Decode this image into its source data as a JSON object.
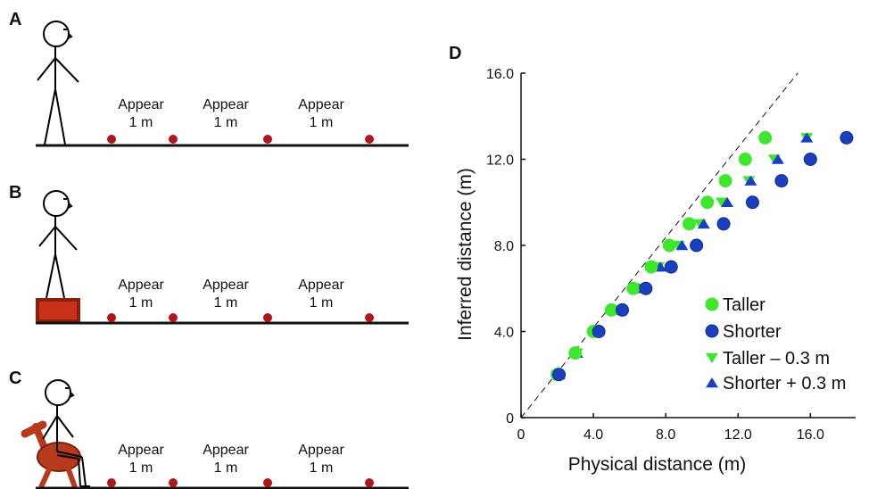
{
  "panels": [
    {
      "label": "A",
      "variant": "standing"
    },
    {
      "label": "B",
      "variant": "on-box"
    },
    {
      "label": "C",
      "variant": "seated"
    }
  ],
  "appear_label": {
    "line1": "Appear",
    "line2": "1 m"
  },
  "panel_d_label": "D",
  "colors": {
    "taller": "#3ee62e",
    "shorter": "#1a3fbf",
    "shorter_stroke": "#0d2a8a",
    "marker_dot": "#b0151a",
    "box": "#c8321a",
    "box_border": "#8a1f0c",
    "chair": "#b83a1c",
    "ground": "#111111"
  },
  "chart_data": {
    "type": "scatter",
    "xlabel": "Physical distance (m)",
    "ylabel": "Inferred distance (m)",
    "xlim": [
      0,
      18.5
    ],
    "ylim": [
      0,
      16.0
    ],
    "xticks": [
      "0",
      "4.0",
      "8.0",
      "12.0",
      "16.0"
    ],
    "xtick_values": [
      0,
      4,
      8,
      12,
      16
    ],
    "yticks": [
      "0",
      "4.0",
      "8.0",
      "12.0",
      "16.0"
    ],
    "ytick_values": [
      0,
      4,
      8,
      12,
      16
    ],
    "reference_line": "y = x (dashed)",
    "legend_position": "bottom-right",
    "series": [
      {
        "name": "Taller",
        "marker": "circle",
        "color_key": "taller",
        "points": [
          [
            2.0,
            2.0
          ],
          [
            3.0,
            3.0
          ],
          [
            4.0,
            4.0
          ],
          [
            5.0,
            5.0
          ],
          [
            6.2,
            6.0
          ],
          [
            7.2,
            7.0
          ],
          [
            8.2,
            8.0
          ],
          [
            9.3,
            9.0
          ],
          [
            10.3,
            10.0
          ],
          [
            11.3,
            11.0
          ],
          [
            12.4,
            12.0
          ],
          [
            13.5,
            13.0
          ]
        ]
      },
      {
        "name": "Shorter",
        "marker": "circle",
        "color_key": "shorter",
        "points": [
          [
            2.1,
            2.0
          ],
          [
            4.3,
            4.0
          ],
          [
            5.6,
            5.0
          ],
          [
            6.9,
            6.0
          ],
          [
            8.3,
            7.0
          ],
          [
            9.7,
            8.0
          ],
          [
            11.2,
            9.0
          ],
          [
            12.8,
            10.0
          ],
          [
            14.4,
            11.0
          ],
          [
            16.0,
            12.0
          ],
          [
            18.0,
            13.0
          ]
        ]
      },
      {
        "name": "Taller – 0.3 m",
        "marker": "triangle-down",
        "color_key": "taller",
        "points": [
          [
            2.0,
            2.0
          ],
          [
            3.1,
            3.0
          ],
          [
            4.2,
            4.0
          ],
          [
            5.3,
            5.0
          ],
          [
            6.5,
            6.0
          ],
          [
            7.6,
            7.0
          ],
          [
            8.7,
            8.0
          ],
          [
            9.9,
            9.0
          ],
          [
            11.1,
            10.0
          ],
          [
            12.6,
            11.0
          ],
          [
            14.0,
            12.0
          ],
          [
            15.8,
            13.0
          ]
        ]
      },
      {
        "name": "Shorter + 0.3 m",
        "marker": "triangle-up",
        "color_key": "shorter",
        "points": [
          [
            2.1,
            2.0
          ],
          [
            3.1,
            3.0
          ],
          [
            4.2,
            4.0
          ],
          [
            5.4,
            5.0
          ],
          [
            6.5,
            6.0
          ],
          [
            7.7,
            7.0
          ],
          [
            8.9,
            8.0
          ],
          [
            10.1,
            9.0
          ],
          [
            11.4,
            10.0
          ],
          [
            12.7,
            11.0
          ],
          [
            14.2,
            12.0
          ],
          [
            15.8,
            13.0
          ]
        ]
      }
    ]
  }
}
